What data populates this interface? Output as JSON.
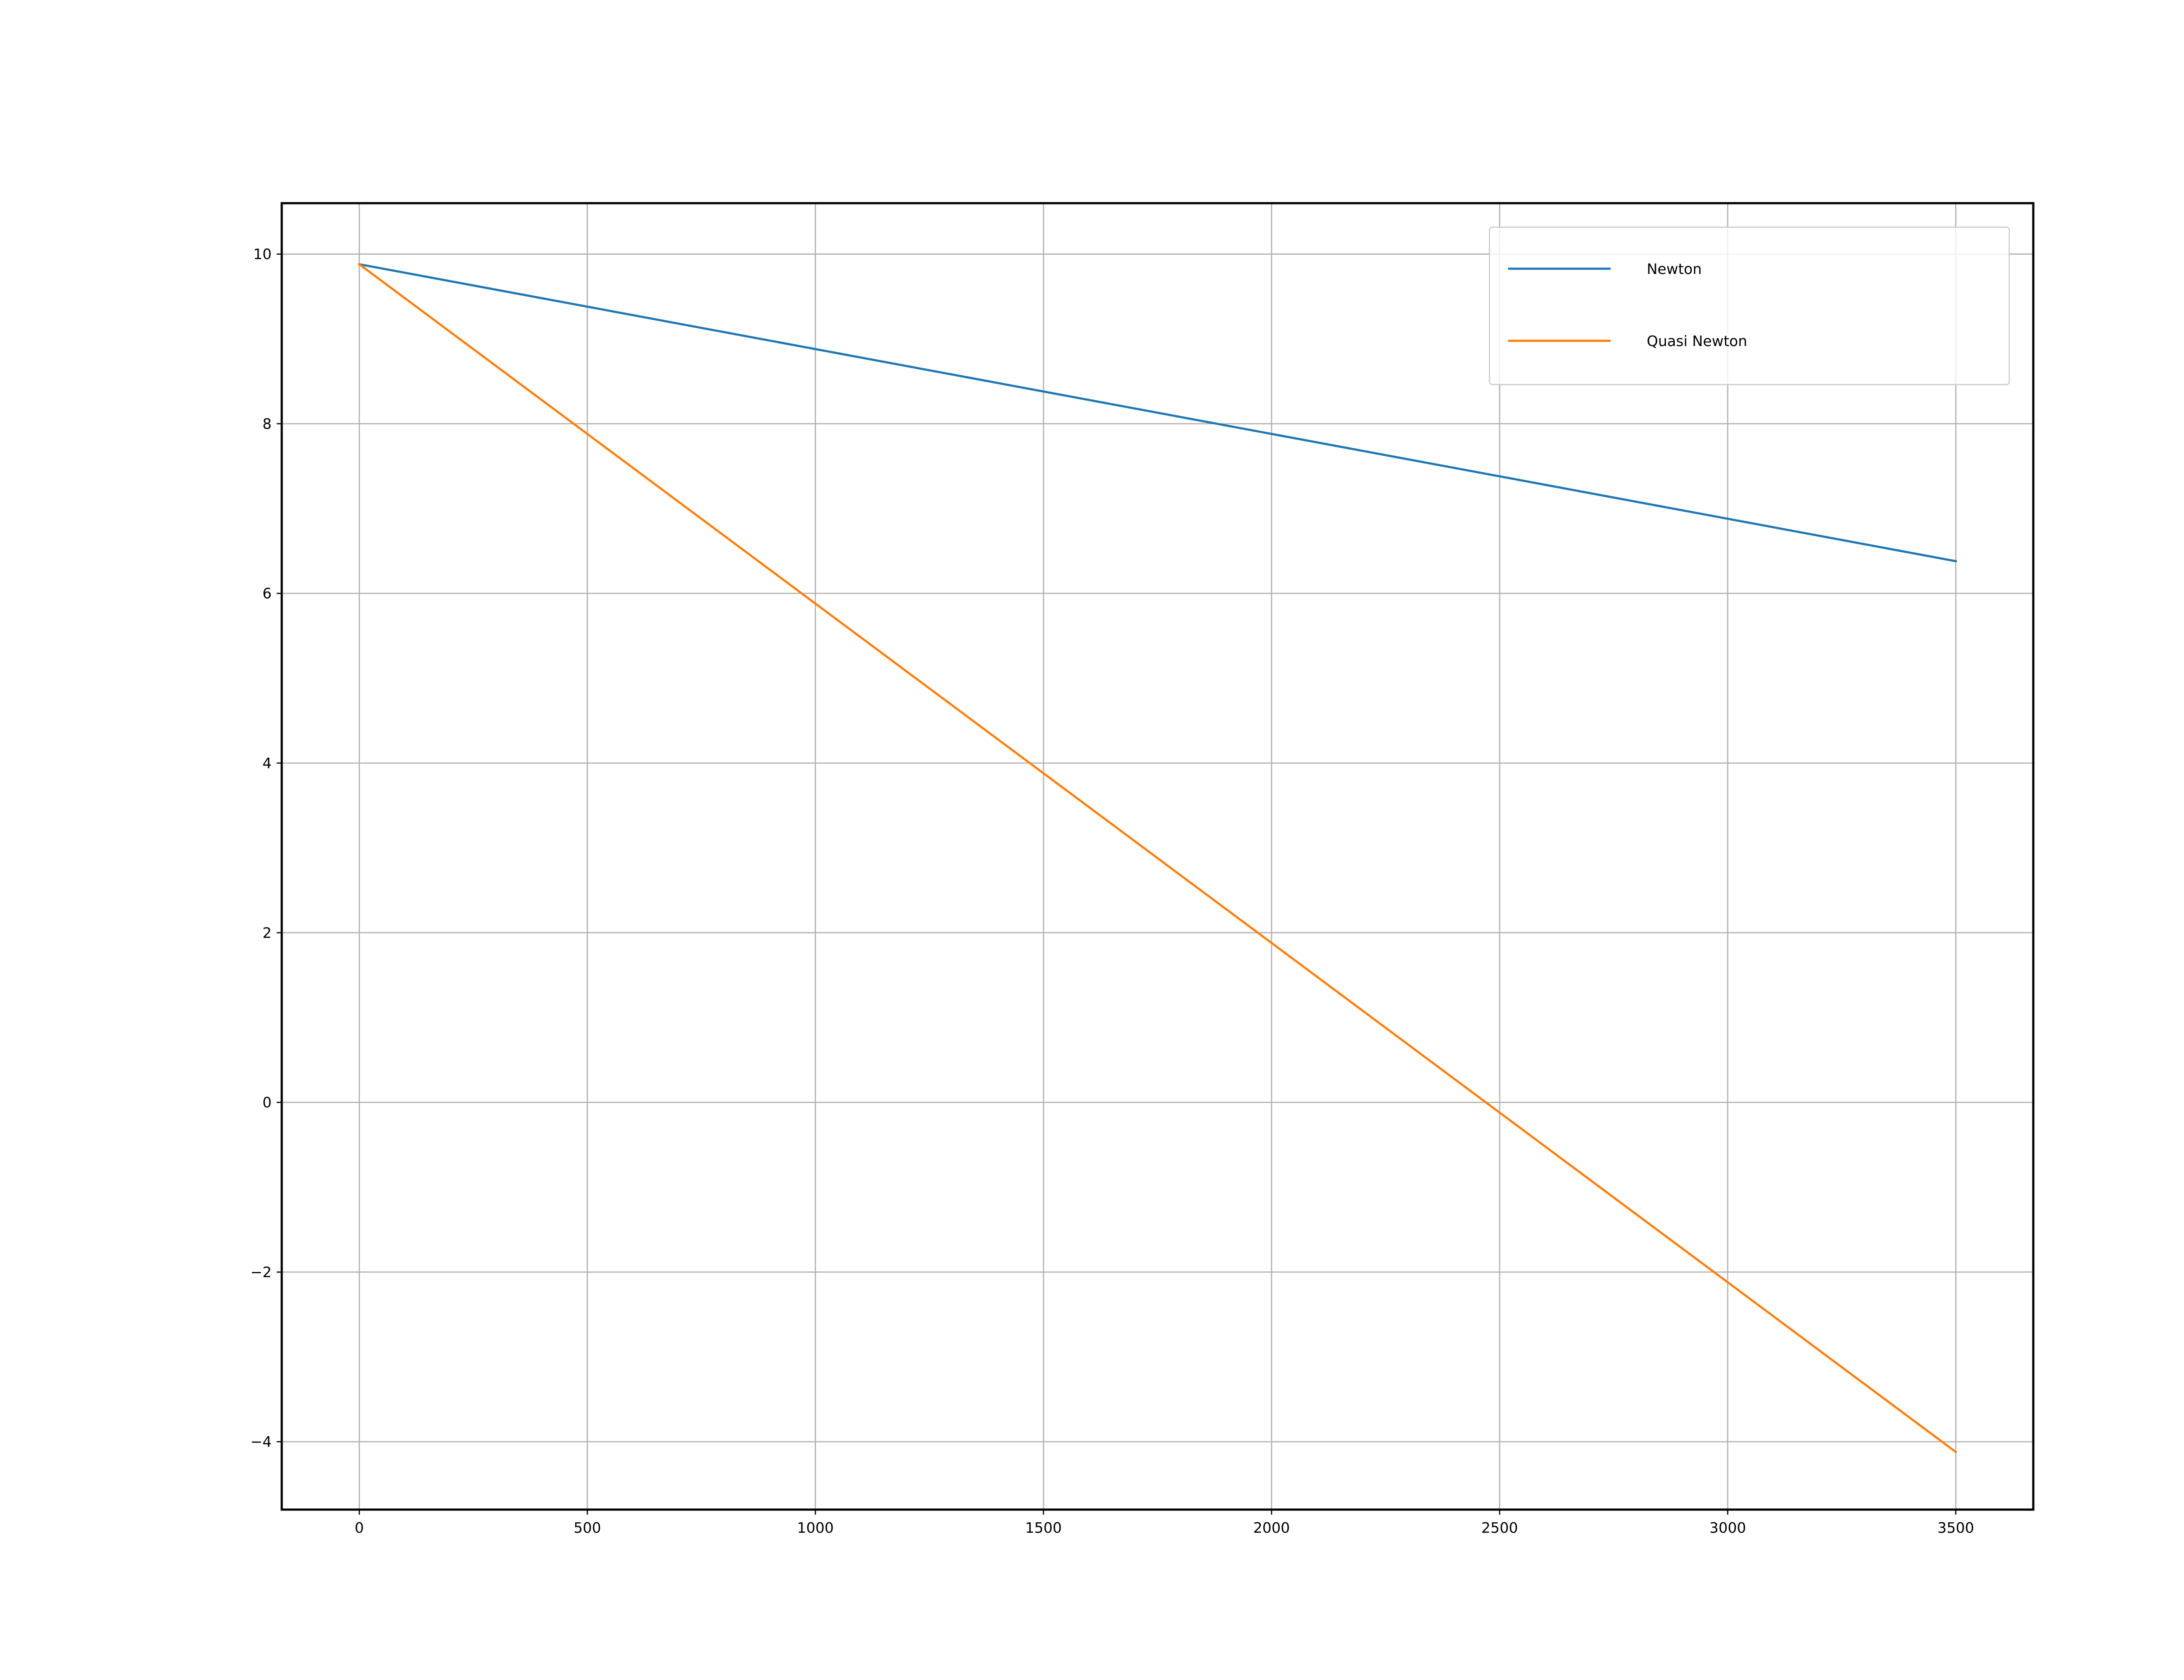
{
  "chart_data": {
    "type": "line",
    "title": "",
    "xlabel": "",
    "ylabel": "",
    "xlim": [
      -170,
      3670
    ],
    "ylim": [
      -4.8,
      10.6
    ],
    "xticks": [
      0,
      500,
      1000,
      1500,
      2000,
      2500,
      3000,
      3500
    ],
    "yticks": [
      -4,
      -2,
      0,
      2,
      4,
      6,
      8,
      10
    ],
    "xtick_labels": [
      "0",
      "500",
      "1000",
      "1500",
      "2000",
      "2500",
      "3000",
      "3500"
    ],
    "ytick_labels": [
      "−4",
      "−2",
      "0",
      "2",
      "4",
      "6",
      "8",
      "10"
    ],
    "grid": true,
    "legend_position": "upper right",
    "series": [
      {
        "name": "Newton",
        "color": "#1f77b4",
        "x": [
          0,
          3500
        ],
        "y": [
          9.88,
          6.38
        ]
      },
      {
        "name": "Quasi Newton",
        "color": "#ff7f0e",
        "x": [
          0,
          3500
        ],
        "y": [
          9.88,
          -4.12
        ]
      }
    ]
  }
}
